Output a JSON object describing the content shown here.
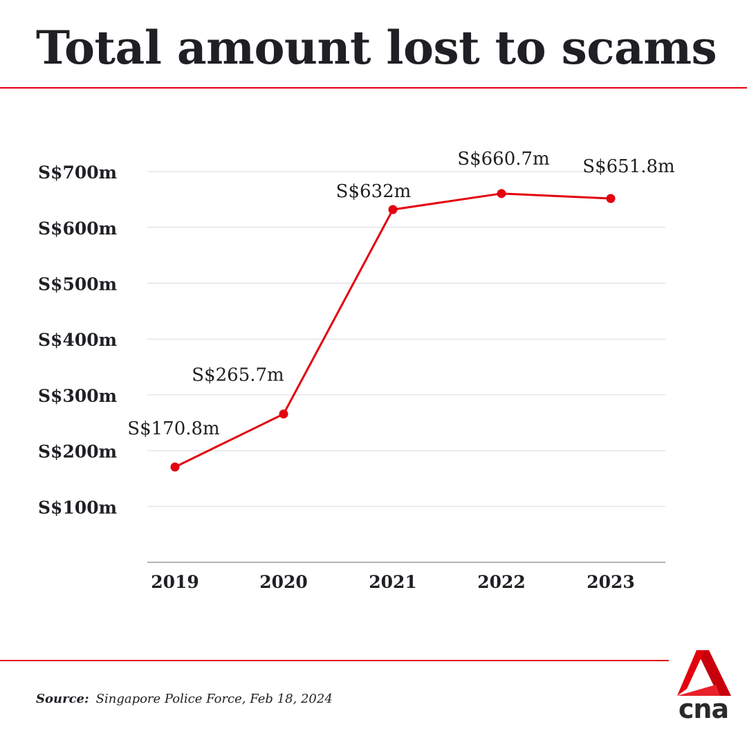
{
  "title": "Total amount lost to scams",
  "source": {
    "label": "Source:",
    "text": "Singapore Police Force, Feb 18, 2024"
  },
  "logo": {
    "text": "cna"
  },
  "colors": {
    "line": "#e3000f",
    "text": "#1f1f24",
    "grid": "#d9d9d9",
    "accent": "#e3000f"
  },
  "chart_data": {
    "type": "line",
    "title": "Total amount lost to scams",
    "categories": [
      "2019",
      "2020",
      "2021",
      "2022",
      "2023"
    ],
    "series": [
      {
        "values": [
          170.8,
          265.7,
          632,
          660.7,
          651.8
        ]
      }
    ],
    "data_labels": [
      "S$170.8m",
      "S$265.7m",
      "S$632m",
      "S$660.7m",
      "S$651.8m"
    ],
    "y_ticks": [
      100,
      200,
      300,
      400,
      500,
      600,
      700
    ],
    "y_tick_labels": [
      "S$100m",
      "S$200m",
      "S$300m",
      "S$400m",
      "S$500m",
      "S$600m",
      "S$700m"
    ],
    "ylim": [
      0,
      700
    ],
    "xlabel": "",
    "ylabel": "",
    "grid": true,
    "legend": "none"
  }
}
